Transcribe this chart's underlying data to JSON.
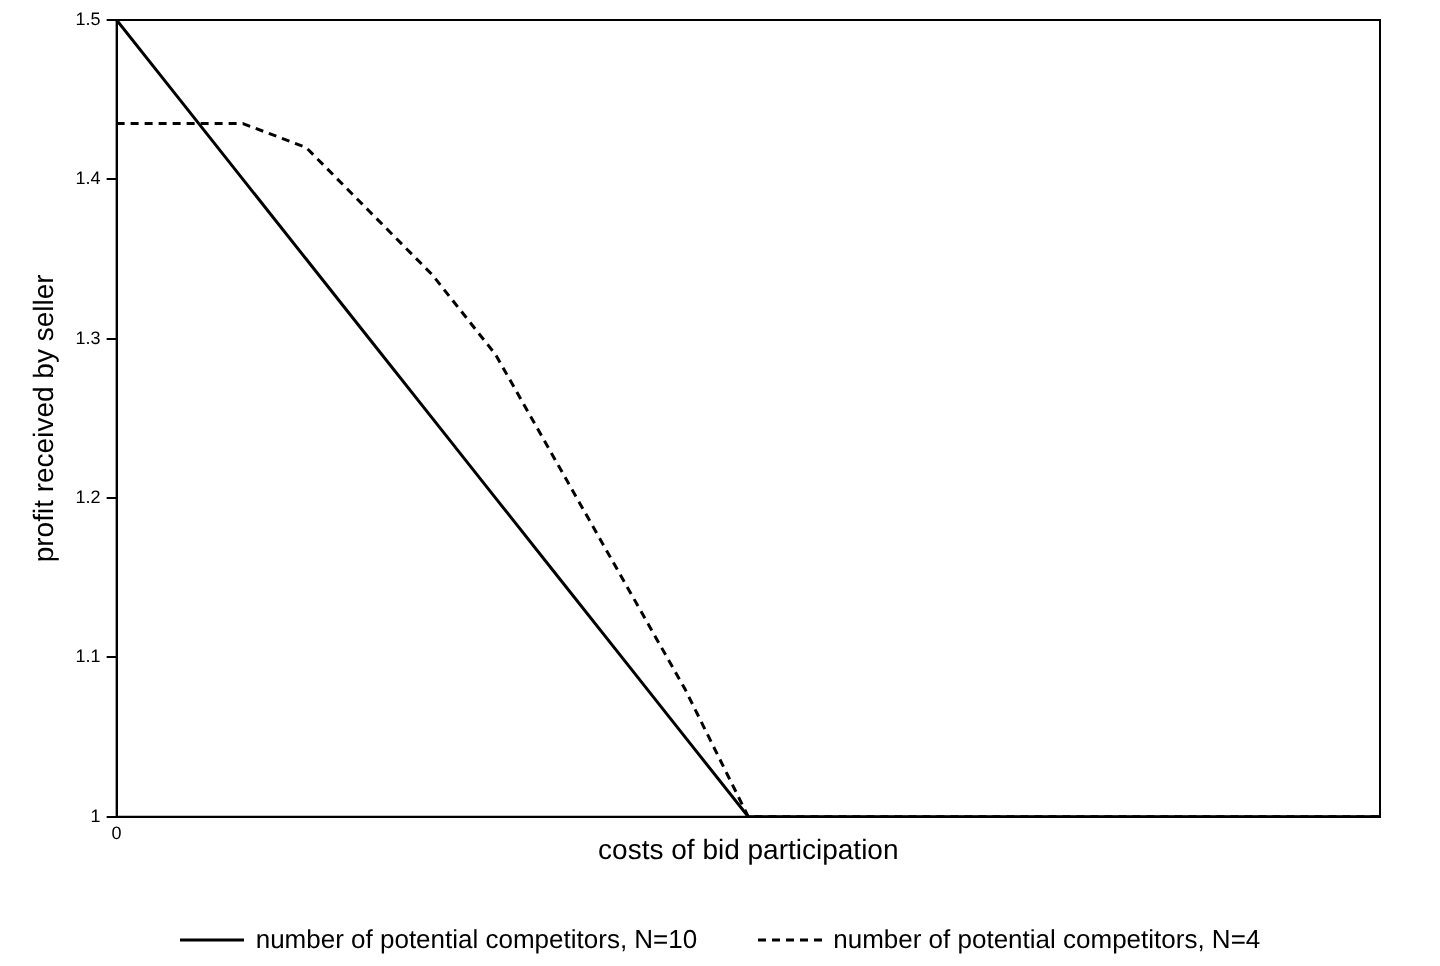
{
  "chart_data": {
    "type": "line",
    "xlabel": "costs of bid participation",
    "ylabel": "profit received by seller",
    "categories": [
      "0",
      null,
      null,
      null,
      null,
      null,
      null,
      null,
      null,
      null,
      null,
      null,
      null,
      null,
      null,
      null,
      null,
      null,
      null,
      null,
      null
    ],
    "series": [
      {
        "name": "number of potential competitors, N=10",
        "color": "#000000",
        "line_style": "solid",
        "values": [
          1.5,
          1.45,
          1.4,
          1.35,
          1.3,
          1.25,
          1.2,
          1.15,
          1.1,
          1.05,
          1.0,
          1.0,
          1.0,
          1.0,
          1.0,
          1.0,
          1.0,
          1.0,
          1.0,
          1.0,
          1.0
        ]
      },
      {
        "name": "number of potential competitors, N=4",
        "color": "#000000",
        "line_style": "dashed",
        "values": [
          1.435,
          1.435,
          1.435,
          1.42,
          1.38,
          1.34,
          1.29,
          1.22,
          1.15,
          1.08,
          1.0,
          1.0,
          1.0,
          1.0,
          1.0,
          1.0,
          1.0,
          1.0,
          1.0,
          1.0,
          1.0
        ]
      }
    ],
    "ylim": [
      1,
      1.5
    ],
    "yticks": [
      1,
      1.1,
      1.2,
      1.3,
      1.4,
      1.5
    ],
    "grid": false,
    "legend": "bottom",
    "marker": "none"
  }
}
